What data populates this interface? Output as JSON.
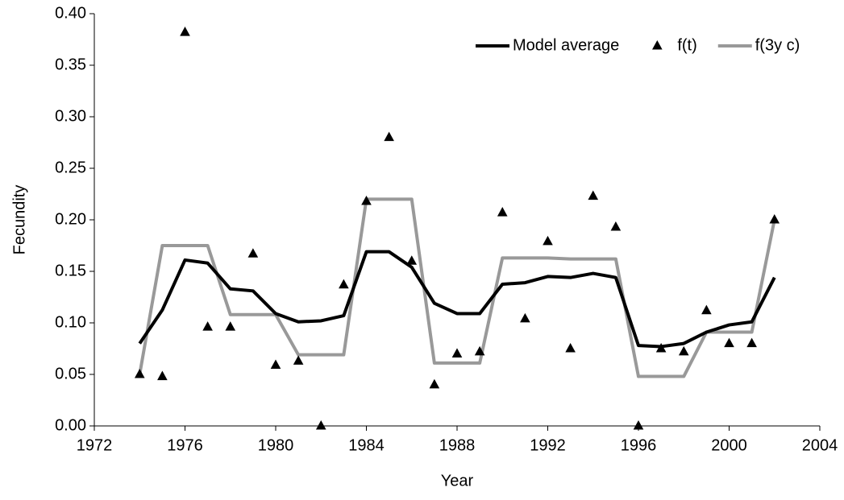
{
  "chart_data": {
    "type": "line",
    "xlabel": "Year",
    "ylabel": "Fecundity",
    "x": [
      1974,
      1975,
      1976,
      1977,
      1978,
      1979,
      1980,
      1981,
      1982,
      1983,
      1984,
      1985,
      1986,
      1987,
      1988,
      1989,
      1990,
      1991,
      1992,
      1993,
      1994,
      1995,
      1996,
      1997,
      1998,
      1999,
      2000,
      2001,
      2002
    ],
    "series": [
      {
        "name": "Model average",
        "color": "#000000",
        "style": "line",
        "values": [
          0.08,
          0.1125,
          0.161,
          0.158,
          0.133,
          0.131,
          0.109,
          0.101,
          0.102,
          0.107,
          0.169,
          0.169,
          0.154,
          0.119,
          0.109,
          0.109,
          0.1375,
          0.139,
          0.145,
          0.144,
          0.148,
          0.144,
          0.078,
          0.077,
          0.08,
          0.091,
          0.098,
          0.101,
          0.144
        ]
      },
      {
        "name": "f(t)",
        "color": "#000000",
        "style": "markers",
        "values": [
          0.05,
          0.048,
          0.382,
          0.096,
          0.096,
          0.167,
          0.059,
          0.063,
          0.0,
          0.137,
          0.218,
          0.28,
          0.16,
          0.04,
          0.07,
          0.072,
          0.207,
          0.104,
          0.179,
          0.075,
          0.223,
          0.193,
          0.0,
          0.075,
          0.072,
          0.112,
          0.08,
          0.08,
          0.2
        ]
      },
      {
        "name": "f(3y c)",
        "color": "#999999",
        "style": "line",
        "values": [
          0.05,
          0.175,
          0.175,
          0.175,
          0.108,
          0.108,
          0.108,
          0.069,
          0.069,
          0.069,
          0.22,
          0.22,
          0.22,
          0.061,
          0.061,
          0.061,
          0.163,
          0.163,
          0.163,
          0.162,
          0.162,
          0.162,
          0.048,
          0.048,
          0.048,
          0.091,
          0.091,
          0.091,
          0.2
        ]
      }
    ],
    "xlim": [
      1972,
      2004
    ],
    "xticks": [
      1972,
      1976,
      1980,
      1984,
      1988,
      1992,
      1996,
      2000,
      2004
    ],
    "ylim": [
      0,
      0.4
    ],
    "yticks": [
      {
        "value": 0,
        "label": "0.00"
      },
      {
        "value": 0.05,
        "label": "0.05"
      },
      {
        "value": 0.1,
        "label": "0.10"
      },
      {
        "value": 0.15,
        "label": "0.15"
      },
      {
        "value": 0.2,
        "label": "0.20"
      },
      {
        "value": 0.25,
        "label": "0.25"
      },
      {
        "value": 0.3,
        "label": "0.30"
      },
      {
        "value": 0.35,
        "label": "0.35"
      },
      {
        "value": 0.4,
        "label": "0.40"
      }
    ],
    "grid": false,
    "legend": "upper right"
  }
}
